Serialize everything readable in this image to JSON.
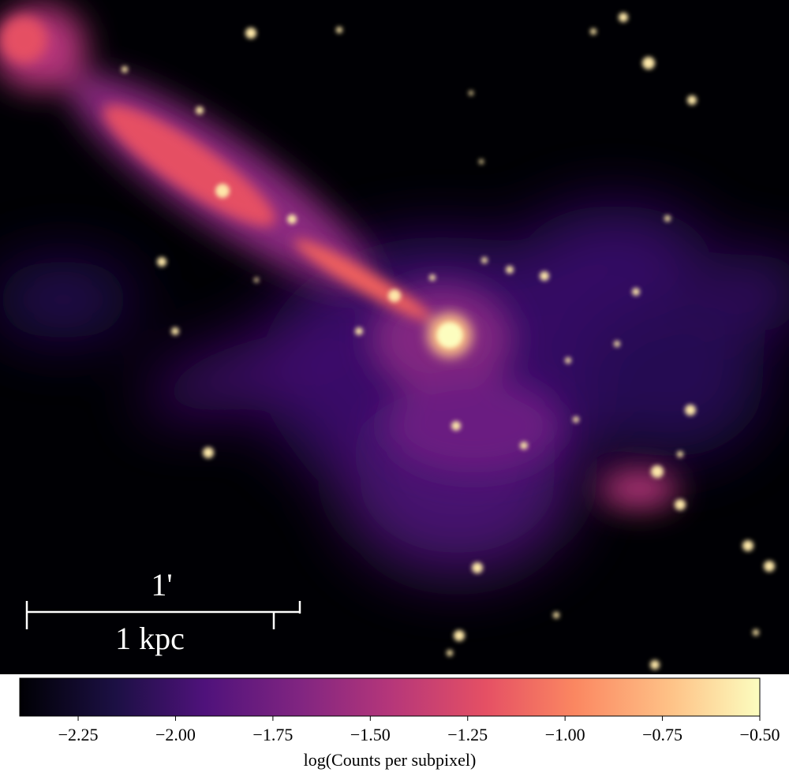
{
  "image": {
    "scale_bar": {
      "angular_label": "1'",
      "physical_label": "1 kpc"
    }
  },
  "colorbar": {
    "label": "log(Counts per subpixel)",
    "lim": [
      -2.4,
      -0.5
    ],
    "ticks": [
      {
        "value": -2.25,
        "label": "−2.25"
      },
      {
        "value": -2.0,
        "label": "−2.00"
      },
      {
        "value": -1.75,
        "label": "−1.75"
      },
      {
        "value": -1.5,
        "label": "−1.50"
      },
      {
        "value": -1.25,
        "label": "−1.25"
      },
      {
        "value": -1.0,
        "label": "−1.00"
      },
      {
        "value": -0.75,
        "label": "−0.75"
      },
      {
        "value": -0.5,
        "label": "−0.50"
      }
    ]
  }
}
